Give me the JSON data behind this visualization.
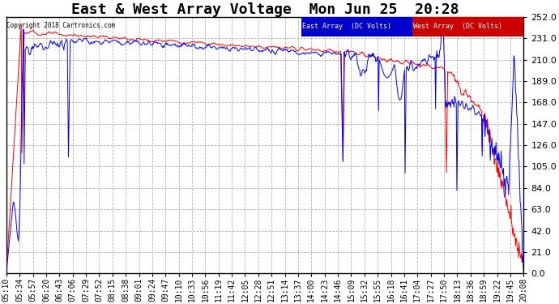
{
  "title": "East & West Array Voltage  Mon Jun 25  20:28",
  "copyright": "Copyright 2018 Cartronics.com",
  "legend_east": "East Array  (DC Volts)",
  "legend_west": "West Array  (DC Volts)",
  "east_color": "#0000ff",
  "west_color": "#ff0000",
  "legend_east_bg": "#0000cc",
  "legend_west_bg": "#cc0000",
  "yticks": [
    0.0,
    21.0,
    42.0,
    63.0,
    84.0,
    105.0,
    126.0,
    147.0,
    168.0,
    189.0,
    210.0,
    231.0,
    252.0
  ],
  "ylim": [
    0.0,
    252.0
  ],
  "background_color": "#ffffff",
  "plot_bg": "#ffffff",
  "grid_color": "#aaaaaa",
  "title_fontsize": 13,
  "tick_fontsize": 7,
  "n_points": 900,
  "xtick_labels": [
    "05:10",
    "05:34",
    "05:57",
    "06:20",
    "06:43",
    "07:06",
    "07:29",
    "07:52",
    "08:15",
    "08:38",
    "09:01",
    "09:24",
    "09:47",
    "10:10",
    "10:33",
    "10:56",
    "11:19",
    "11:42",
    "12:05",
    "12:28",
    "12:51",
    "13:14",
    "13:37",
    "14:00",
    "14:23",
    "14:46",
    "15:09",
    "15:32",
    "15:55",
    "16:18",
    "16:41",
    "17:04",
    "17:27",
    "17:50",
    "18:13",
    "18:36",
    "18:59",
    "19:22",
    "19:45",
    "20:08"
  ]
}
